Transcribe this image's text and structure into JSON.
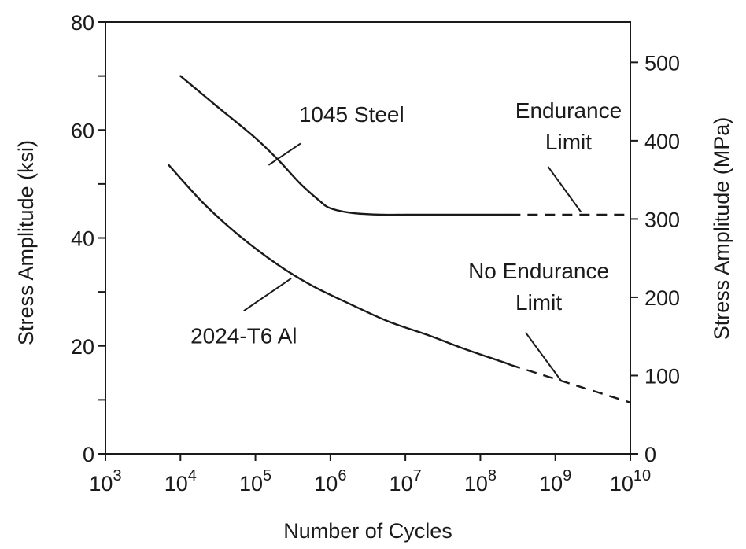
{
  "chart_data": {
    "type": "line",
    "title": "",
    "xlabel": "Number of Cycles",
    "ylabel": "Stress Amplitude (ksi)",
    "ylabel_right": "Stress Amplitude (MPa)",
    "x_scale": "log",
    "xlim": [
      1000,
      10000000000
    ],
    "ylim": [
      0,
      80
    ],
    "ylim_right": [
      0,
      551.6
    ],
    "grid": false,
    "x_ticks": [
      {
        "value": 1000,
        "base": "10",
        "exp": "3"
      },
      {
        "value": 10000,
        "base": "10",
        "exp": "4"
      },
      {
        "value": 100000,
        "base": "10",
        "exp": "5"
      },
      {
        "value": 1000000,
        "base": "10",
        "exp": "6"
      },
      {
        "value": 10000000,
        "base": "10",
        "exp": "7"
      },
      {
        "value": 100000000,
        "base": "10",
        "exp": "8"
      },
      {
        "value": 1000000000,
        "base": "10",
        "exp": "9"
      },
      {
        "value": 10000000000,
        "base": "10",
        "exp": "10"
      }
    ],
    "y_ticks_left": [
      {
        "value": 0,
        "label": "0"
      },
      {
        "value": 20,
        "label": "20"
      },
      {
        "value": 40,
        "label": "40"
      },
      {
        "value": 60,
        "label": "60"
      },
      {
        "value": 80,
        "label": "80"
      }
    ],
    "y_minor_left": [
      10,
      30,
      50,
      70
    ],
    "y_ticks_right": [
      {
        "value": 0,
        "label": "0"
      },
      {
        "value": 100,
        "label": "100"
      },
      {
        "value": 200,
        "label": "200"
      },
      {
        "value": 300,
        "label": "300"
      },
      {
        "value": 400,
        "label": "400"
      },
      {
        "value": 500,
        "label": "500"
      }
    ],
    "series": [
      {
        "name": "1045 Steel",
        "x": [
          10000,
          30000,
          100000,
          200000,
          400000,
          700000,
          1000000,
          2000000,
          5000000,
          10000000,
          100000000,
          250000000
        ],
        "y": [
          70,
          64.5,
          58.5,
          54.5,
          50,
          47,
          45.5,
          44.6,
          44.3,
          44.3,
          44.3,
          44.3
        ],
        "extension": {
          "x": [
            250000000,
            10000000000
          ],
          "y": [
            44.3,
            44.3
          ]
        }
      },
      {
        "name": "2024-T6 Al",
        "x": [
          7000,
          20000,
          60000,
          200000,
          600000,
          2000000,
          6000000,
          20000000,
          60000000,
          200000000,
          250000000
        ],
        "y": [
          53.5,
          46.5,
          40.5,
          35,
          31,
          27.5,
          24.5,
          22,
          19.5,
          17,
          16.5
        ],
        "extension": {
          "x": [
            250000000,
            10000000000
          ],
          "y": [
            16.5,
            9.5
          ]
        }
      }
    ],
    "annotations": [
      {
        "text": "1045 Steel",
        "lines": [
          "1045 Steel"
        ],
        "anchor": "start",
        "text_x": 380000,
        "text_y": 61.5,
        "leader": {
          "from": [
            400000,
            57.5
          ],
          "to": [
            150000,
            53.5
          ]
        }
      },
      {
        "text": "2024-T6 Al",
        "lines": [
          "2024-T6 Al"
        ],
        "anchor": "middle",
        "text_x": 70000,
        "text_y": 20.5,
        "leader": {
          "from": [
            70000,
            26.5
          ],
          "to": [
            300000,
            32.5
          ]
        }
      },
      {
        "text": "Endurance Limit",
        "lines": [
          "Endurance",
          "Limit"
        ],
        "anchor": "middle",
        "text_x": 1500000000,
        "text_y": 62.2,
        "leader": {
          "from": [
            800000000,
            53.2
          ],
          "to": [
            2200000000,
            44.8
          ]
        }
      },
      {
        "text": "No Endurance Limit",
        "lines": [
          "No Endurance",
          "Limit"
        ],
        "anchor": "middle",
        "text_x": 600000000,
        "text_y": 32.5,
        "leader": {
          "from": [
            400000000,
            22.5
          ],
          "to": [
            1200000000,
            13.5
          ]
        }
      }
    ]
  }
}
